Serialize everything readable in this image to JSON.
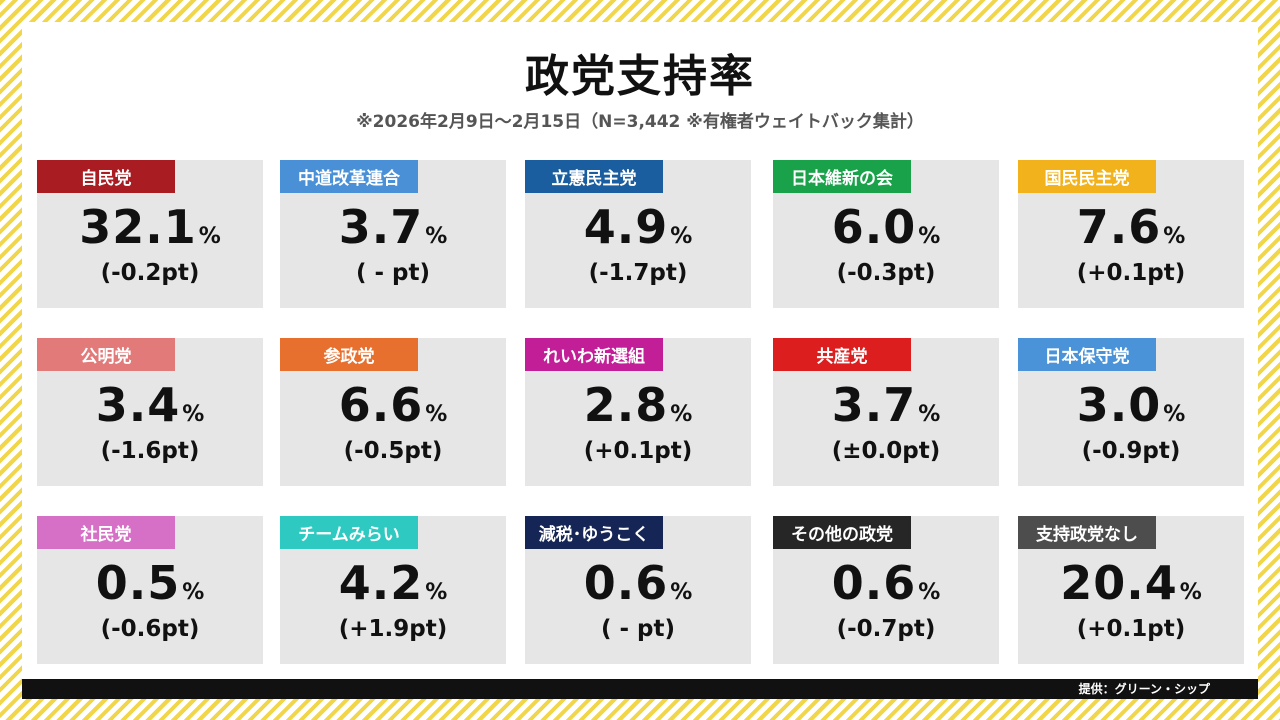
{
  "title": "政党支持率",
  "subtitle": "※2026年2月9日～2月15日（N=3,442 ※有権者ウェイトバック集計）",
  "credit": "提供：グリーン・シップ",
  "unit": "%",
  "chart_data": {
    "type": "table",
    "title": "政党支持率",
    "subtitle": "※2026年2月9日～2月15日（N=3,442 ※有権者ウェイトバック集計）",
    "unit": "%",
    "items": [
      {
        "name": "自民党",
        "value": "32.1",
        "change": "(-0.2pt)",
        "color": "#a81c22"
      },
      {
        "name": "中道改革連合",
        "value": "3.7",
        "change": "( - pt)",
        "color": "#4a90d6"
      },
      {
        "name": "立憲民主党",
        "value": "4.9",
        "change": "(-1.7pt)",
        "color": "#1a5ea0"
      },
      {
        "name": "日本維新の会",
        "value": "6.0",
        "change": "(-0.3pt)",
        "color": "#1aa24a"
      },
      {
        "name": "国民民主党",
        "value": "7.6",
        "change": "(+0.1pt)",
        "color": "#f2b21b"
      },
      {
        "name": "公明党",
        "value": "3.4",
        "change": "(-1.6pt)",
        "color": "#e37a7a"
      },
      {
        "name": "参政党",
        "value": "6.6",
        "change": "(-0.5pt)",
        "color": "#e8702e"
      },
      {
        "name": "れいわ新選組",
        "value": "2.8",
        "change": "(+0.1pt)",
        "color": "#c21e98"
      },
      {
        "name": "共産党",
        "value": "3.7",
        "change": "(±0.0pt)",
        "color": "#dd1e1e"
      },
      {
        "name": "日本保守党",
        "value": "3.0",
        "change": "(-0.9pt)",
        "color": "#4b93d9"
      },
      {
        "name": "社民党",
        "value": "0.5",
        "change": "(-0.6pt)",
        "color": "#d670c6"
      },
      {
        "name": "チームみらい",
        "value": "4.2",
        "change": "(+1.9pt)",
        "color": "#2ec9c0"
      },
      {
        "name": "減税･ゆうこく",
        "value": "0.6",
        "change": "( - pt)",
        "color": "#152555"
      },
      {
        "name": "その他の政党",
        "value": "0.6",
        "change": "(-0.7pt)",
        "color": "#262626"
      },
      {
        "name": "支持政党なし",
        "value": "20.4",
        "change": "(+0.1pt)",
        "color": "#4d4d4d"
      }
    ]
  }
}
